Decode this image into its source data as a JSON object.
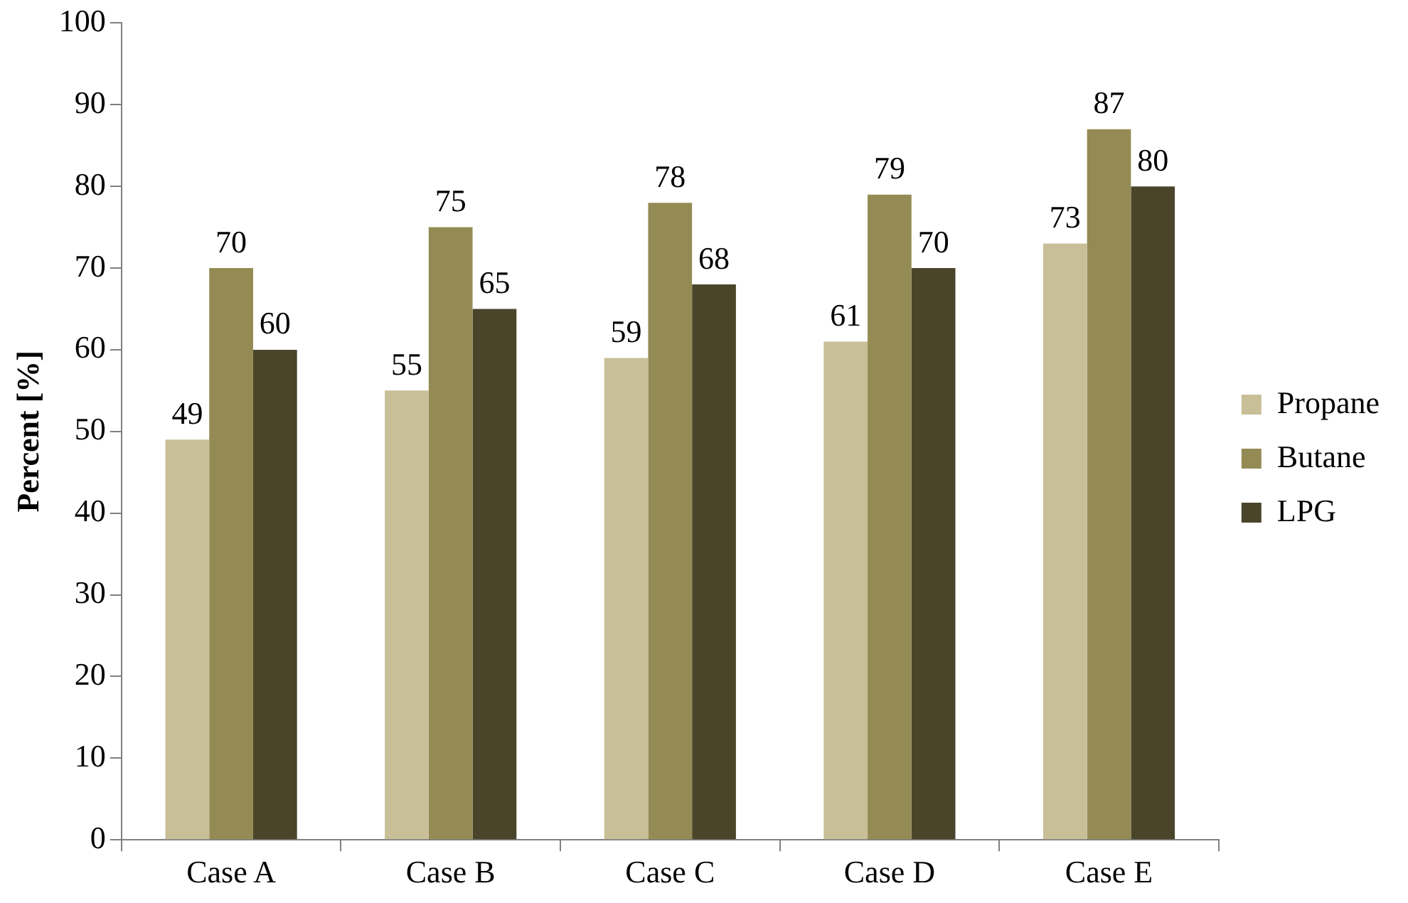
{
  "chart_data": {
    "type": "bar",
    "ylabel": "Percent [%]",
    "categories": [
      "Case A",
      "Case B",
      "Case C",
      "Case D",
      "Case E"
    ],
    "series": [
      {
        "name": "Propane",
        "color": "#c8bf98",
        "values": [
          49,
          55,
          59,
          61,
          73
        ]
      },
      {
        "name": "Butane",
        "color": "#948b54",
        "values": [
          70,
          75,
          78,
          79,
          87
        ]
      },
      {
        "name": "LPG",
        "color": "#4a452a",
        "values": [
          60,
          65,
          68,
          70,
          80
        ]
      }
    ],
    "ylim": [
      0,
      100
    ],
    "yticks": [
      0,
      10,
      20,
      30,
      40,
      50,
      60,
      70,
      80,
      90,
      100
    ],
    "grid": false,
    "legend": "right",
    "data_labels": true
  }
}
